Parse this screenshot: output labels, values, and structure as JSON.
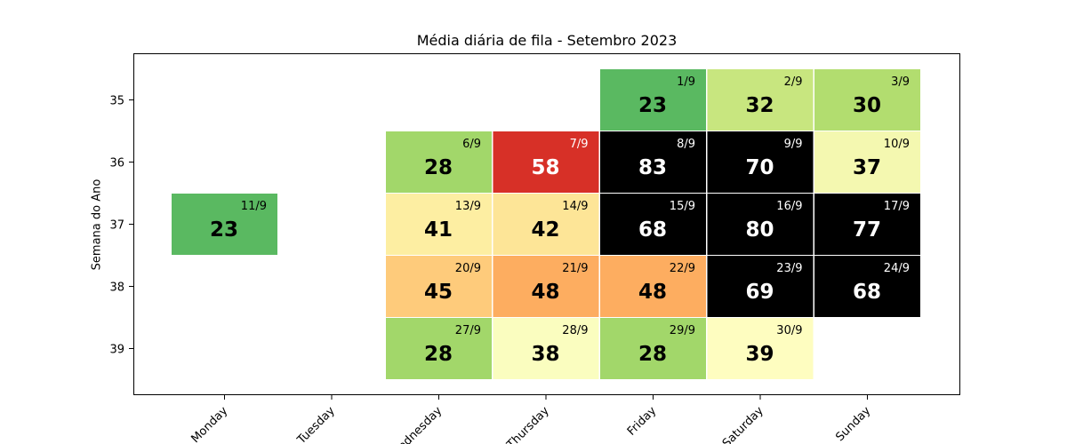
{
  "chart_data": {
    "type": "heatmap",
    "title": "Média diária de fila - Setembro 2023",
    "xlabel": "",
    "ylabel": "Semana do Ano",
    "x_categories": [
      "Monday",
      "Tuesday",
      "Wednesday",
      "Thursday",
      "Friday",
      "Saturday",
      "Sunday"
    ],
    "y_categories": [
      "35",
      "36",
      "37",
      "38",
      "39"
    ],
    "cells": [
      {
        "week": "35",
        "day": "Friday",
        "value": 23,
        "date": "1/9",
        "color": "#5ab961"
      },
      {
        "week": "35",
        "day": "Saturday",
        "value": 32,
        "date": "2/9",
        "color": "#c8e67f"
      },
      {
        "week": "35",
        "day": "Sunday",
        "value": 30,
        "date": "3/9",
        "color": "#b2dd6f"
      },
      {
        "week": "36",
        "day": "Wednesday",
        "value": 28,
        "date": "6/9",
        "color": "#a2d76a"
      },
      {
        "week": "36",
        "day": "Thursday",
        "value": 58,
        "date": "7/9",
        "color": "#d73027"
      },
      {
        "week": "36",
        "day": "Friday",
        "value": 83,
        "date": "8/9",
        "color": "#000000"
      },
      {
        "week": "36",
        "day": "Saturday",
        "value": 70,
        "date": "9/9",
        "color": "#000000"
      },
      {
        "week": "36",
        "day": "Sunday",
        "value": 37,
        "date": "10/9",
        "color": "#f4f8b0"
      },
      {
        "week": "37",
        "day": "Monday",
        "value": 23,
        "date": "11/9",
        "color": "#5ab961"
      },
      {
        "week": "37",
        "day": "Wednesday",
        "value": 41,
        "date": "13/9",
        "color": "#fdeea2"
      },
      {
        "week": "37",
        "day": "Thursday",
        "value": 42,
        "date": "14/9",
        "color": "#fde597"
      },
      {
        "week": "37",
        "day": "Friday",
        "value": 68,
        "date": "15/9",
        "color": "#000000"
      },
      {
        "week": "37",
        "day": "Saturday",
        "value": 80,
        "date": "16/9",
        "color": "#000000"
      },
      {
        "week": "37",
        "day": "Sunday",
        "value": 77,
        "date": "17/9",
        "color": "#000000"
      },
      {
        "week": "38",
        "day": "Wednesday",
        "value": 45,
        "date": "20/9",
        "color": "#fecb7b"
      },
      {
        "week": "38",
        "day": "Thursday",
        "value": 48,
        "date": "21/9",
        "color": "#fdad60"
      },
      {
        "week": "38",
        "day": "Friday",
        "value": 48,
        "date": "22/9",
        "color": "#fdad60"
      },
      {
        "week": "38",
        "day": "Saturday",
        "value": 69,
        "date": "23/9",
        "color": "#000000"
      },
      {
        "week": "38",
        "day": "Sunday",
        "value": 68,
        "date": "24/9",
        "color": "#000000"
      },
      {
        "week": "39",
        "day": "Wednesday",
        "value": 28,
        "date": "27/9",
        "color": "#a2d76a"
      },
      {
        "week": "39",
        "day": "Thursday",
        "value": 38,
        "date": "28/9",
        "color": "#fafdbf"
      },
      {
        "week": "39",
        "day": "Friday",
        "value": 28,
        "date": "29/9",
        "color": "#a2d76a"
      },
      {
        "week": "39",
        "day": "Saturday",
        "value": 39,
        "date": "30/9",
        "color": "#fefdc0"
      }
    ],
    "grid": false,
    "legend": "none"
  }
}
